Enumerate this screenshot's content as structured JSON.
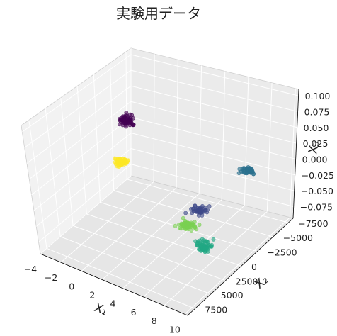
{
  "chart_data": {
    "type": "scatter",
    "projection": "3d",
    "title": "実験用データ",
    "xlabel": "X₁",
    "ylabel": "X₂",
    "zlabel": "X₃",
    "xlim": [
      -4,
      11
    ],
    "ylim": [
      -8000,
      9000
    ],
    "zlim": [
      -0.1,
      0.12
    ],
    "xticks": [
      "−4",
      "−2",
      "0",
      "2",
      "4",
      "6",
      "8",
      "10"
    ],
    "yticks": [
      "−7500",
      "−5000",
      "−2500",
      "0",
      "2500",
      "5000",
      "7500"
    ],
    "zticks": [
      "−0.075",
      "−0.050",
      "−0.025",
      "0.000",
      "0.025",
      "0.050",
      "0.075",
      "0.100"
    ],
    "grid": true,
    "legend": "none",
    "marker_alpha": 0.6,
    "clusters": [
      {
        "color": "#440154",
        "n": 60,
        "center_screen": [
          180,
          170
        ],
        "spread": [
          9,
          7
        ]
      },
      {
        "color": "#fde725",
        "n": 60,
        "center_screen": [
          171,
          228
        ],
        "spread": [
          8,
          5
        ]
      },
      {
        "color": "#2c718e",
        "n": 50,
        "center_screen": [
          350,
          241
        ],
        "spread": [
          9,
          5
        ]
      },
      {
        "color": "#3e4a89",
        "n": 50,
        "center_screen": [
          281,
          297
        ],
        "spread": [
          9,
          5
        ]
      },
      {
        "color": "#7ad151",
        "n": 60,
        "center_screen": [
          265,
          318
        ],
        "spread": [
          10,
          5
        ]
      },
      {
        "color": "#22a884",
        "n": 60,
        "center_screen": [
          288,
          347
        ],
        "spread": [
          10,
          6
        ]
      }
    ]
  }
}
